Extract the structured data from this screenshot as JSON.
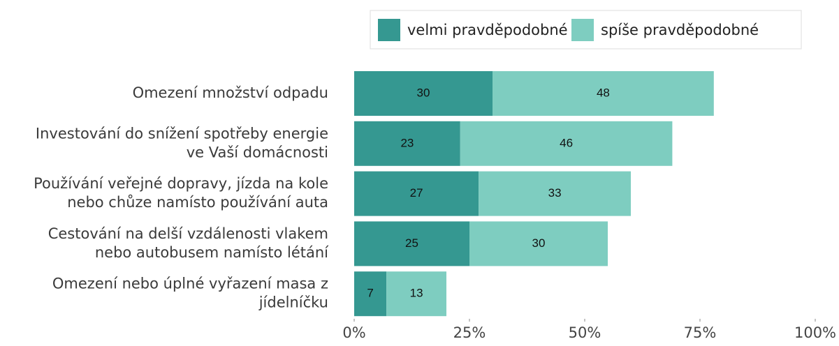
{
  "chart_data": {
    "type": "stacked-barh",
    "categories": [
      "Omezení množství odpadu",
      "Investování do snížení spotřeby energie\nve Vaší domácnosti",
      "Používání veřejné dopravy, jízda na kole\nnebo chůze namísto používání auta",
      "Cestování na delší vzdálenosti vlakem\nnebo autobusem namísto létání",
      "Omezení nebo úplné vyřazení masa z\njídelníčku"
    ],
    "series": [
      {
        "name": "velmi pravděpodobné",
        "color": "#359891",
        "values": [
          30,
          23,
          27,
          25,
          7
        ]
      },
      {
        "name": "spíše pravděpodobné",
        "color": "#7ecdc0",
        "values": [
          48,
          46,
          33,
          30,
          13
        ]
      }
    ],
    "xlim": [
      0,
      100
    ],
    "xticks": [
      {
        "value": 0,
        "label": "0%"
      },
      {
        "value": 25,
        "label": "25%"
      },
      {
        "value": 50,
        "label": "50%"
      },
      {
        "value": 75,
        "label": "75%"
      },
      {
        "value": 100,
        "label": "100%"
      }
    ],
    "legend": "top"
  }
}
